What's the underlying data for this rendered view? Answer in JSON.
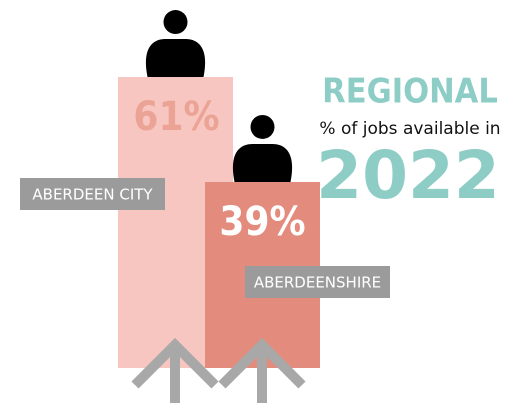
{
  "chart_data": {
    "type": "bar",
    "title": "REGIONAL",
    "subtitle": "% of jobs available in",
    "year": "2022",
    "categories": [
      "ABERDEEN CITY",
      "ABERDEENSHIRE"
    ],
    "values": [
      61,
      39
    ],
    "value_labels": [
      "61%",
      "39%"
    ],
    "colors": [
      "#f7c6c0",
      "#e38c7d"
    ],
    "label_colors": [
      "#eba396",
      "#ffffff"
    ]
  }
}
